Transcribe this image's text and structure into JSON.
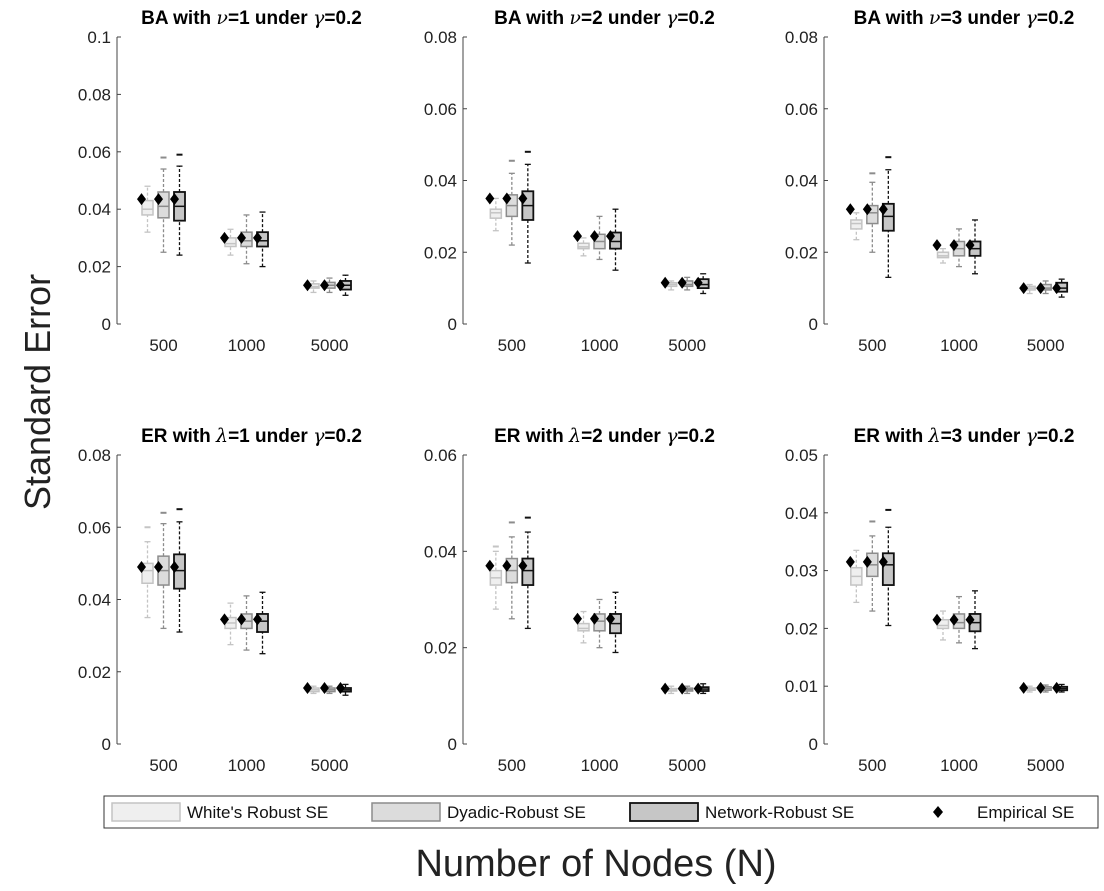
{
  "figure": {
    "ylabel": "Standard Error",
    "xlabel": "Number of Nodes (N)"
  },
  "legend": {
    "placement": "bottom",
    "items": [
      {
        "label": "White's Robust SE",
        "fill": "#efefef",
        "stroke": "#c4c4c4"
      },
      {
        "label": "Dyadic-Robust SE",
        "fill": "#dcdcdc",
        "stroke": "#8c8c8c"
      },
      {
        "label": "Network-Robust SE",
        "fill": "#c6c6c6",
        "stroke": "#111111"
      },
      {
        "label": "Empirical SE",
        "marker": "diamond",
        "color": "#000000"
      }
    ]
  },
  "chart_data": [
    {
      "type": "box",
      "title": {
        "prefix": "BA with ",
        "sym": "ν",
        "mid": "=1 under ",
        "sym2": "γ",
        "suffix": "=0.2"
      },
      "categories": [
        "500",
        "1000",
        "5000"
      ],
      "ylim": [
        0,
        0.1
      ],
      "yticks": [
        "0",
        "0.02",
        "0.04",
        "0.06",
        "0.08",
        "0.1"
      ],
      "yticks_values": [
        0,
        0.02,
        0.04,
        0.06,
        0.08,
        0.1
      ],
      "series": [
        {
          "name": "White's Robust SE",
          "boxes": [
            [
              0.032,
              0.038,
              0.04,
              0.043,
              0.048,
              0.0
            ],
            [
              0.024,
              0.027,
              0.028,
              0.03,
              0.033,
              0.0
            ],
            [
              0.011,
              0.0125,
              0.013,
              0.014,
              0.015,
              0.0
            ]
          ]
        },
        {
          "name": "Dyadic-Robust SE",
          "boxes": [
            [
              0.025,
              0.037,
              0.041,
              0.046,
              0.054,
              0.058
            ],
            [
              0.021,
              0.027,
              0.029,
              0.032,
              0.038,
              0.0
            ],
            [
              0.011,
              0.0125,
              0.0135,
              0.0145,
              0.016,
              0.0
            ]
          ]
        },
        {
          "name": "Network-Robust SE",
          "boxes": [
            [
              0.024,
              0.036,
              0.041,
              0.046,
              0.055,
              0.059
            ],
            [
              0.02,
              0.027,
              0.029,
              0.032,
              0.039,
              0.0
            ],
            [
              0.01,
              0.012,
              0.0135,
              0.015,
              0.017,
              0.0
            ]
          ]
        }
      ],
      "empirical": [
        0.0435,
        0.03,
        0.0135
      ]
    },
    {
      "type": "box",
      "title": {
        "prefix": "BA with ",
        "sym": "ν",
        "mid": "=2 under ",
        "sym2": "γ",
        "suffix": "=0.2"
      },
      "categories": [
        "500",
        "1000",
        "5000"
      ],
      "ylim": [
        0,
        0.08
      ],
      "yticks": [
        "0",
        "0.02",
        "0.04",
        "0.06",
        "0.08"
      ],
      "yticks_values": [
        0,
        0.02,
        0.04,
        0.06,
        0.08
      ],
      "series": [
        {
          "name": "White's Robust SE",
          "boxes": [
            [
              0.026,
              0.0295,
              0.031,
              0.032,
              0.035,
              0.0
            ],
            [
              0.019,
              0.021,
              0.0215,
              0.0225,
              0.024,
              0.0
            ],
            [
              0.0095,
              0.0105,
              0.011,
              0.0115,
              0.012,
              0.0
            ]
          ]
        },
        {
          "name": "Dyadic-Robust SE",
          "boxes": [
            [
              0.022,
              0.03,
              0.033,
              0.036,
              0.042,
              0.0455
            ],
            [
              0.018,
              0.021,
              0.023,
              0.025,
              0.03,
              0.0
            ],
            [
              0.0095,
              0.0105,
              0.011,
              0.012,
              0.013,
              0.0
            ]
          ]
        },
        {
          "name": "Network-Robust SE",
          "boxes": [
            [
              0.017,
              0.029,
              0.033,
              0.037,
              0.0445,
              0.048
            ],
            [
              0.015,
              0.021,
              0.023,
              0.0255,
              0.032,
              0.0
            ],
            [
              0.0085,
              0.01,
              0.011,
              0.0125,
              0.014,
              0.0
            ]
          ]
        }
      ],
      "empirical": [
        0.035,
        0.0245,
        0.0115
      ]
    },
    {
      "type": "box",
      "title": {
        "prefix": "BA with ",
        "sym": "ν",
        "mid": "=3 under ",
        "sym2": "γ",
        "suffix": "=0.2"
      },
      "categories": [
        "500",
        "1000",
        "5000"
      ],
      "ylim": [
        0,
        0.08
      ],
      "yticks": [
        "0",
        "0.02",
        "0.04",
        "0.06",
        "0.08"
      ],
      "yticks_values": [
        0,
        0.02,
        0.04,
        0.06,
        0.08
      ],
      "series": [
        {
          "name": "White's Robust SE",
          "boxes": [
            [
              0.0235,
              0.0265,
              0.028,
              0.029,
              0.031,
              0.0
            ],
            [
              0.017,
              0.0185,
              0.019,
              0.02,
              0.021,
              0.0
            ],
            [
              0.0085,
              0.0095,
              0.01,
              0.0105,
              0.011,
              0.0
            ]
          ]
        },
        {
          "name": "Dyadic-Robust SE",
          "boxes": [
            [
              0.02,
              0.028,
              0.031,
              0.033,
              0.0395,
              0.042
            ],
            [
              0.016,
              0.019,
              0.021,
              0.023,
              0.0265,
              0.0
            ],
            [
              0.0085,
              0.0095,
              0.01,
              0.011,
              0.012,
              0.0
            ]
          ]
        },
        {
          "name": "Network-Robust SE",
          "boxes": [
            [
              0.013,
              0.026,
              0.03,
              0.0335,
              0.043,
              0.0465
            ],
            [
              0.014,
              0.019,
              0.021,
              0.023,
              0.029,
              0.0
            ],
            [
              0.0075,
              0.009,
              0.01,
              0.0115,
              0.0125,
              0.0
            ]
          ]
        }
      ],
      "empirical": [
        0.032,
        0.022,
        0.01
      ]
    },
    {
      "type": "box",
      "title": {
        "prefix": "ER with ",
        "sym": "λ",
        "mid": "=1 under ",
        "sym2": "γ",
        "suffix": "=0.2"
      },
      "categories": [
        "500",
        "1000",
        "5000"
      ],
      "ylim": [
        0,
        0.08
      ],
      "yticks": [
        "0",
        "0.02",
        "0.04",
        "0.06",
        "0.08"
      ],
      "yticks_values": [
        0,
        0.02,
        0.04,
        0.06,
        0.08
      ],
      "series": [
        {
          "name": "White's Robust SE",
          "boxes": [
            [
              0.035,
              0.0445,
              0.048,
              0.05,
              0.056,
              0.06
            ],
            [
              0.0275,
              0.032,
              0.0335,
              0.035,
              0.039,
              0.0
            ],
            [
              0.014,
              0.0145,
              0.015,
              0.0155,
              0.016,
              0.0
            ]
          ]
        },
        {
          "name": "Dyadic-Robust SE",
          "boxes": [
            [
              0.032,
              0.044,
              0.048,
              0.052,
              0.061,
              0.064
            ],
            [
              0.026,
              0.032,
              0.034,
              0.036,
              0.041,
              0.0
            ],
            [
              0.014,
              0.0145,
              0.015,
              0.0155,
              0.016,
              0.0
            ]
          ]
        },
        {
          "name": "Network-Robust SE",
          "boxes": [
            [
              0.031,
              0.043,
              0.048,
              0.0525,
              0.0615,
              0.065
            ],
            [
              0.025,
              0.031,
              0.034,
              0.036,
              0.042,
              0.0
            ],
            [
              0.0135,
              0.0145,
              0.015,
              0.0155,
              0.0165,
              0.0
            ]
          ]
        }
      ],
      "empirical": [
        0.049,
        0.0345,
        0.0155
      ]
    },
    {
      "type": "box",
      "title": {
        "prefix": "ER with ",
        "sym": "λ",
        "mid": "=2 under ",
        "sym2": "γ",
        "suffix": "=0.2"
      },
      "categories": [
        "500",
        "1000",
        "5000"
      ],
      "ylim": [
        0,
        0.06
      ],
      "yticks": [
        "0",
        "0.02",
        "0.04",
        "0.06"
      ],
      "yticks_values": [
        0,
        0.02,
        0.04,
        0.06
      ],
      "series": [
        {
          "name": "White's Robust SE",
          "boxes": [
            [
              0.028,
              0.033,
              0.0345,
              0.036,
              0.04,
              0.041
            ],
            [
              0.021,
              0.0235,
              0.024,
              0.025,
              0.0275,
              0.0
            ],
            [
              0.0105,
              0.011,
              0.0112,
              0.0115,
              0.012,
              0.0
            ]
          ]
        },
        {
          "name": "Dyadic-Robust SE",
          "boxes": [
            [
              0.026,
              0.0335,
              0.036,
              0.0385,
              0.043,
              0.046
            ],
            [
              0.02,
              0.0235,
              0.0255,
              0.027,
              0.03,
              0.0
            ],
            [
              0.0105,
              0.011,
              0.0113,
              0.0116,
              0.012,
              0.0
            ]
          ]
        },
        {
          "name": "Network-Robust SE",
          "boxes": [
            [
              0.024,
              0.033,
              0.036,
              0.0385,
              0.044,
              0.047
            ],
            [
              0.019,
              0.023,
              0.025,
              0.027,
              0.0315,
              0.0
            ],
            [
              0.0105,
              0.011,
              0.0114,
              0.0118,
              0.0125,
              0.0
            ]
          ]
        }
      ],
      "empirical": [
        0.037,
        0.026,
        0.0115
      ]
    },
    {
      "type": "box",
      "title": {
        "prefix": "ER with ",
        "sym": "λ",
        "mid": "=3 under ",
        "sym2": "γ",
        "suffix": "=0.2"
      },
      "categories": [
        "500",
        "1000",
        "5000"
      ],
      "ylim": [
        0,
        0.05
      ],
      "yticks": [
        "0",
        "0.01",
        "0.02",
        "0.03",
        "0.04",
        "0.05"
      ],
      "yticks_values": [
        0,
        0.01,
        0.02,
        0.03,
        0.04,
        0.05
      ],
      "series": [
        {
          "name": "White's Robust SE",
          "boxes": [
            [
              0.0245,
              0.0275,
              0.029,
              0.0305,
              0.0335,
              0.0
            ],
            [
              0.018,
              0.02,
              0.0205,
              0.0215,
              0.023,
              0.0
            ],
            [
              0.009,
              0.0093,
              0.0095,
              0.0097,
              0.01,
              0.0
            ]
          ]
        },
        {
          "name": "Dyadic-Robust SE",
          "boxes": [
            [
              0.023,
              0.029,
              0.031,
              0.033,
              0.036,
              0.0385
            ],
            [
              0.0175,
              0.02,
              0.021,
              0.0225,
              0.0255,
              0.0
            ],
            [
              0.009,
              0.0093,
              0.0096,
              0.0099,
              0.0102,
              0.0
            ]
          ]
        },
        {
          "name": "Network-Robust SE",
          "boxes": [
            [
              0.0205,
              0.0275,
              0.031,
              0.033,
              0.0375,
              0.0405
            ],
            [
              0.0165,
              0.0195,
              0.021,
              0.0225,
              0.0265,
              0.0
            ],
            [
              0.009,
              0.0093,
              0.0096,
              0.0099,
              0.0103,
              0.0
            ]
          ]
        }
      ],
      "empirical": [
        0.0315,
        0.0215,
        0.0097
      ]
    }
  ]
}
